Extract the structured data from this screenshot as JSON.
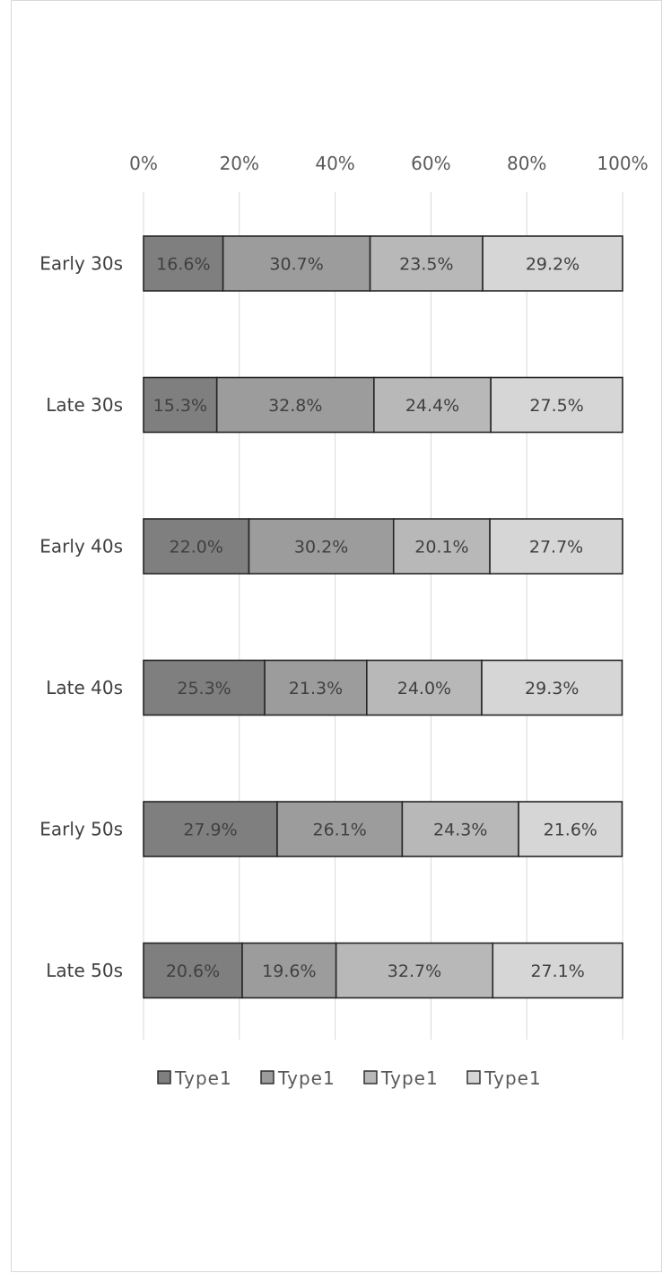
{
  "chart_data": {
    "type": "bar",
    "orientation": "horizontal",
    "stacked": "100%",
    "x_axis_position": "top",
    "grid": "vertical",
    "legend_position": "bottom",
    "xlim": [
      0,
      100
    ],
    "x_ticks": [
      "0%",
      "20%",
      "40%",
      "60%",
      "80%",
      "100%"
    ],
    "categories": [
      "Early 30s",
      "Late 30s",
      "Early 40s",
      "Late 40s",
      "Early 50s",
      "Late 50s"
    ],
    "series": [
      {
        "name": "Type1",
        "color": "#7f7f7f",
        "values": [
          16.6,
          15.3,
          22.0,
          25.3,
          27.9,
          20.6
        ],
        "labels": [
          "16.6%",
          "15.3%",
          "22.0%",
          "25.3%",
          "27.9%",
          "20.6%"
        ]
      },
      {
        "name": "Type1",
        "color": "#9c9c9c",
        "values": [
          30.7,
          32.8,
          30.2,
          21.3,
          26.1,
          19.6
        ],
        "labels": [
          "30.7%",
          "32.8%",
          "30.2%",
          "21.3%",
          "26.1%",
          "19.6%"
        ]
      },
      {
        "name": "Type1",
        "color": "#b8b8b8",
        "values": [
          23.5,
          24.4,
          20.1,
          24.0,
          24.3,
          32.7
        ],
        "labels": [
          "23.5%",
          "24.4%",
          "20.1%",
          "24.0%",
          "24.3%",
          "32.7%"
        ]
      },
      {
        "name": "Type1",
        "color": "#d6d6d6",
        "values": [
          29.2,
          27.5,
          27.7,
          29.3,
          21.6,
          27.1
        ],
        "labels": [
          "29.2%",
          "27.5%",
          "27.7%",
          "29.3%",
          "21.6%",
          "27.1%"
        ]
      }
    ]
  }
}
